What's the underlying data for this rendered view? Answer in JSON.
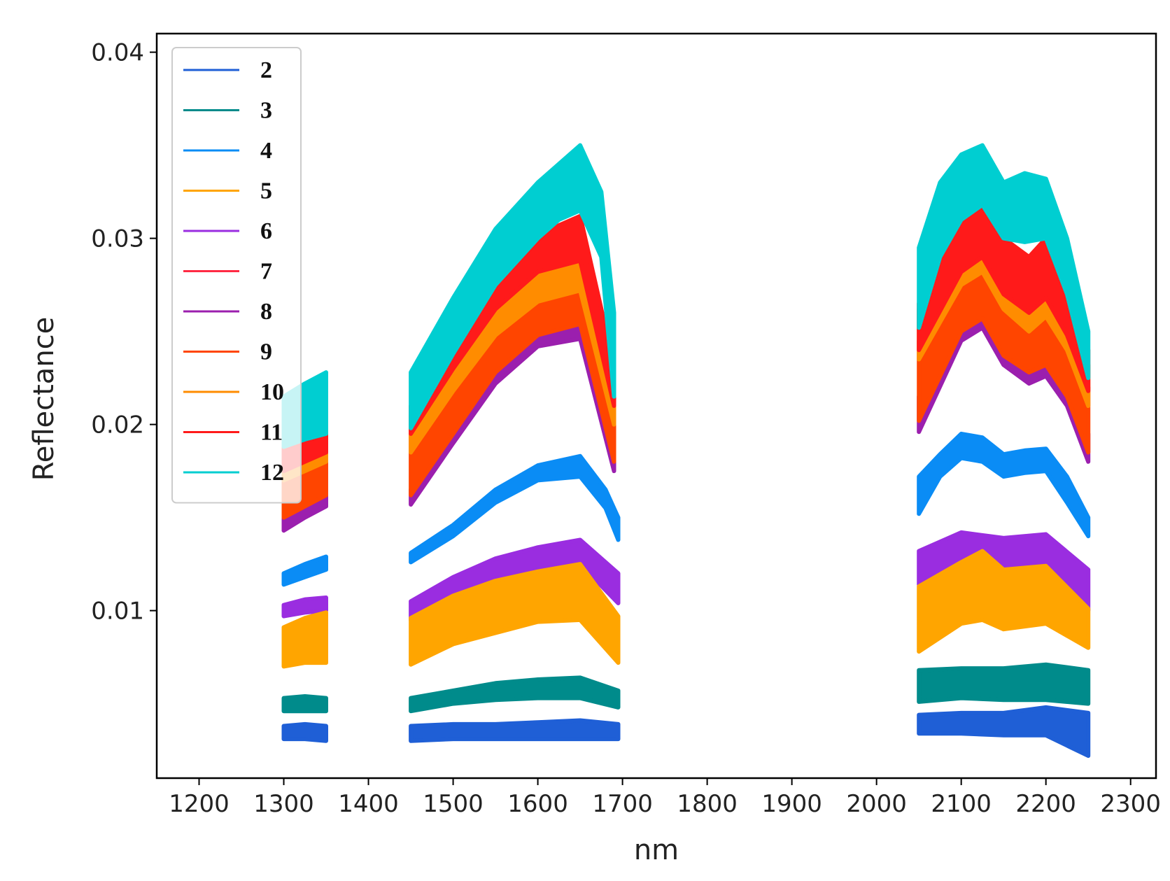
{
  "chart_data": {
    "type": "line",
    "title": "",
    "xlabel": "nm",
    "ylabel": "Reflectance",
    "xlim": [
      1150,
      2330
    ],
    "ylim": [
      0.001,
      0.041
    ],
    "xticks": [
      1200,
      1300,
      1400,
      1500,
      1600,
      1700,
      1800,
      1900,
      2000,
      2100,
      2200,
      2300
    ],
    "yticks": [
      0.01,
      0.02,
      0.03,
      0.04
    ],
    "xtick_labels": [
      "1200",
      "1300",
      "1400",
      "1500",
      "1600",
      "1700",
      "1800",
      "1900",
      "2000",
      "2100",
      "2200",
      "2300"
    ],
    "ytick_labels": [
      "0.01",
      "0.02",
      "0.03",
      "0.04"
    ],
    "grid": false,
    "legend_position": "top-left",
    "series": [
      {
        "name": "2",
        "color": "#1f5fd6",
        "segments": [
          {
            "x": [
              1300,
              1325,
              1350
            ],
            "low": [
              0.0031,
              0.0031,
              0.003
            ],
            "high": [
              0.0038,
              0.0039,
              0.0038
            ]
          },
          {
            "x": [
              1450,
              1500,
              1550,
              1600,
              1650,
              1695
            ],
            "low": [
              0.003,
              0.0031,
              0.0031,
              0.0031,
              0.0031,
              0.0031
            ],
            "high": [
              0.0038,
              0.0039,
              0.0039,
              0.004,
              0.0041,
              0.0039
            ]
          },
          {
            "x": [
              2050,
              2100,
              2150,
              2200,
              2250
            ],
            "low": [
              0.0034,
              0.0034,
              0.0033,
              0.0033,
              0.0022
            ],
            "high": [
              0.0044,
              0.0045,
              0.0045,
              0.0048,
              0.0045
            ]
          }
        ]
      },
      {
        "name": "3",
        "color": "#008b8b",
        "segments": [
          {
            "x": [
              1300,
              1325,
              1350
            ],
            "low": [
              0.0046,
              0.0046,
              0.0046
            ],
            "high": [
              0.0053,
              0.0054,
              0.0053
            ]
          },
          {
            "x": [
              1450,
              1500,
              1550,
              1600,
              1650,
              1695
            ],
            "low": [
              0.0046,
              0.005,
              0.0052,
              0.0053,
              0.0053,
              0.0048
            ],
            "high": [
              0.0053,
              0.0057,
              0.0061,
              0.0063,
              0.0064,
              0.0057
            ]
          },
          {
            "x": [
              2050,
              2100,
              2150,
              2200,
              2250
            ],
            "low": [
              0.0051,
              0.0053,
              0.0052,
              0.0052,
              0.005
            ],
            "high": [
              0.0068,
              0.0069,
              0.0069,
              0.0071,
              0.0068
            ]
          }
        ]
      },
      {
        "name": "4",
        "color": "#0a8cf5",
        "segments": [
          {
            "x": [
              1300,
              1325,
              1350
            ],
            "low": [
              0.0114,
              0.0118,
              0.0122
            ],
            "high": [
              0.012,
              0.0125,
              0.0129
            ]
          },
          {
            "x": [
              1450,
              1500,
              1550,
              1600,
              1650,
              1680,
              1695
            ],
            "low": [
              0.0126,
              0.014,
              0.0158,
              0.017,
              0.0172,
              0.0155,
              0.0138
            ],
            "high": [
              0.0131,
              0.0146,
              0.0165,
              0.0178,
              0.0183,
              0.0165,
              0.015
            ]
          },
          {
            "x": [
              2050,
              2075,
              2100,
              2125,
              2150,
              2175,
              2200,
              2225,
              2250
            ],
            "low": [
              0.0152,
              0.0172,
              0.0182,
              0.018,
              0.0172,
              0.0174,
              0.0175,
              0.0158,
              0.014
            ],
            "high": [
              0.0172,
              0.0184,
              0.0195,
              0.0193,
              0.0184,
              0.0186,
              0.0187,
              0.0172,
              0.015
            ]
          }
        ]
      },
      {
        "name": "6",
        "color": "#9a2de0",
        "segments": [
          {
            "x": [
              1300,
              1325,
              1350
            ],
            "low": [
              0.0097,
              0.0099,
              0.01
            ],
            "high": [
              0.0103,
              0.0106,
              0.0107
            ]
          },
          {
            "x": [
              1450,
              1500,
              1550,
              1600,
              1650,
              1695
            ],
            "low": [
              0.0095,
              0.0108,
              0.0117,
              0.0122,
              0.0125,
              0.0104
            ],
            "high": [
              0.0105,
              0.0118,
              0.0128,
              0.0134,
              0.0138,
              0.012
            ]
          },
          {
            "x": [
              2050,
              2100,
              2150,
              2200,
              2250
            ],
            "low": [
              0.0114,
              0.0124,
              0.0123,
              0.0125,
              0.01
            ],
            "high": [
              0.0132,
              0.0142,
              0.0139,
              0.0141,
              0.0122
            ]
          }
        ]
      },
      {
        "name": "5",
        "color": "#ffa500",
        "segments": [
          {
            "x": [
              1300,
              1325,
              1350
            ],
            "low": [
              0.007,
              0.0072,
              0.0072
            ],
            "high": [
              0.0091,
              0.0096,
              0.0099
            ]
          },
          {
            "x": [
              1450,
              1500,
              1550,
              1600,
              1650,
              1695
            ],
            "low": [
              0.0071,
              0.0082,
              0.0088,
              0.0094,
              0.0095,
              0.0072
            ],
            "high": [
              0.0096,
              0.0108,
              0.0116,
              0.0121,
              0.0125,
              0.0097
            ]
          },
          {
            "x": [
              2050,
              2100,
              2125,
              2150,
              2200,
              2250
            ],
            "low": [
              0.0078,
              0.0093,
              0.0095,
              0.009,
              0.0093,
              0.008
            ],
            "high": [
              0.0113,
              0.0126,
              0.0132,
              0.0122,
              0.0124,
              0.0101
            ]
          }
        ]
      },
      {
        "name": "8",
        "color": "#9b1fae",
        "segments": [
          {
            "x": [
              1300,
              1325,
              1350
            ],
            "low": [
              0.0143,
              0.015,
              0.0156
            ],
            "high": [
              0.015,
              0.0157,
              0.0163
            ]
          },
          {
            "x": [
              1450,
              1500,
              1550,
              1600,
              1650,
              1690
            ],
            "low": [
              0.0157,
              0.019,
              0.0222,
              0.0242,
              0.0246,
              0.0175
            ],
            "high": [
              0.0165,
              0.0198,
              0.0231,
              0.025,
              0.0256,
              0.019
            ]
          },
          {
            "x": [
              2050,
              2100,
              2125,
              2150,
              2180,
              2200,
              2225,
              2250
            ],
            "low": [
              0.0196,
              0.0245,
              0.0252,
              0.0232,
              0.0222,
              0.0226,
              0.021,
              0.018
            ],
            "high": [
              0.0215,
              0.0258,
              0.0262,
              0.0245,
              0.024,
              0.0242,
              0.0225,
              0.0195
            ]
          }
        ]
      },
      {
        "name": "9",
        "color": "#ff4500",
        "segments": [
          {
            "x": [
              1300,
              1325,
              1350
            ],
            "low": [
              0.015,
              0.0156,
              0.0162
            ],
            "high": [
              0.0178,
              0.0184,
              0.0188
            ]
          },
          {
            "x": [
              1450,
              1500,
              1550,
              1600,
              1650,
              1690
            ],
            "low": [
              0.0162,
              0.0195,
              0.0228,
              0.0248,
              0.0254,
              0.018
            ],
            "high": [
              0.0195,
              0.0228,
              0.0257,
              0.0275,
              0.0282,
              0.021
            ]
          },
          {
            "x": [
              2050,
              2100,
              2125,
              2150,
              2180,
              2200,
              2225,
              2250
            ],
            "low": [
              0.0202,
              0.025,
              0.0257,
              0.0237,
              0.0228,
              0.0232,
              0.0215,
              0.0185
            ],
            "high": [
              0.0245,
              0.0285,
              0.0292,
              0.027,
              0.0258,
              0.0266,
              0.0248,
              0.022
            ]
          }
        ]
      },
      {
        "name": "10",
        "color": "#ff8c00",
        "segments": [
          {
            "x": [
              1300,
              1325,
              1350
            ],
            "low": [
              0.017,
              0.0175,
              0.018
            ],
            "high": [
              0.0188,
              0.0193,
              0.0196
            ]
          },
          {
            "x": [
              1450,
              1500,
              1550,
              1600,
              1650,
              1690
            ],
            "low": [
              0.0185,
              0.0218,
              0.0248,
              0.0266,
              0.0272,
              0.02
            ],
            "high": [
              0.0205,
              0.024,
              0.0272,
              0.0295,
              0.0308,
              0.0225
            ]
          },
          {
            "x": [
              2050,
              2100,
              2125,
              2150,
              2180,
              2200,
              2225,
              2250
            ],
            "low": [
              0.0235,
              0.0275,
              0.0282,
              0.0262,
              0.025,
              0.0258,
              0.024,
              0.021
            ],
            "high": [
              0.0262,
              0.0305,
              0.0315,
              0.0292,
              0.028,
              0.029,
              0.0268,
              0.0232
            ]
          }
        ]
      },
      {
        "name": "11",
        "color": "#ff1a1a",
        "segments": [
          {
            "x": [
              1300,
              1325,
              1350
            ],
            "low": [
              0.0175,
              0.018,
              0.0185
            ],
            "high": [
              0.019,
              0.0195,
              0.0198
            ]
          },
          {
            "x": [
              1450,
              1500,
              1550,
              1600,
              1650,
              1690
            ],
            "low": [
              0.0195,
              0.023,
              0.0262,
              0.0282,
              0.0288,
              0.021
            ],
            "high": [
              0.021,
              0.0246,
              0.028,
              0.0302,
              0.0312,
              0.0232
            ]
          },
          {
            "x": [
              2050,
              2100,
              2125,
              2150,
              2180,
              2200,
              2225,
              2250
            ],
            "low": [
              0.024,
              0.0282,
              0.029,
              0.027,
              0.026,
              0.0268,
              0.0248,
              0.0218
            ],
            "high": [
              0.0265,
              0.031,
              0.0325,
              0.03,
              0.029,
              0.03,
              0.0278,
              0.024
            ]
          }
        ]
      },
      {
        "name": "12",
        "color": "#00ced1",
        "segments": [
          {
            "x": [
              1300,
              1325,
              1350
            ],
            "low": [
              0.0188,
              0.0192,
              0.0195
            ],
            "high": [
              0.0215,
              0.0222,
              0.0228
            ]
          },
          {
            "x": [
              1450,
              1500,
              1550,
              1600,
              1625,
              1650,
              1675,
              1690
            ],
            "low": [
              0.0198,
              0.0238,
              0.0275,
              0.03,
              0.031,
              0.0315,
              0.029,
              0.0215
            ],
            "high": [
              0.0228,
              0.0268,
              0.0305,
              0.033,
              0.034,
              0.035,
              0.0325,
              0.026
            ]
          },
          {
            "x": [
              2050,
              2075,
              2100,
              2125,
              2150,
              2175,
              2200,
              2225,
              2250
            ],
            "low": [
              0.0252,
              0.029,
              0.031,
              0.0318,
              0.03,
              0.0298,
              0.03,
              0.027,
              0.0225
            ],
            "high": [
              0.0295,
              0.033,
              0.0345,
              0.035,
              0.033,
              0.0335,
              0.0332,
              0.03,
              0.025
            ]
          }
        ]
      }
    ],
    "legend_order": [
      "2",
      "3",
      "4",
      "5",
      "6",
      "7",
      "8",
      "9",
      "10",
      "11",
      "12"
    ],
    "legend_colors": {
      "2": "#1f5fd6",
      "3": "#008b8b",
      "4": "#0a8cf5",
      "5": "#ffa500",
      "6": "#9a2de0",
      "7": "#ff2a44",
      "8": "#9b1fae",
      "9": "#ff4500",
      "10": "#ff8c00",
      "11": "#ff1a1a",
      "12": "#00ced1"
    }
  }
}
